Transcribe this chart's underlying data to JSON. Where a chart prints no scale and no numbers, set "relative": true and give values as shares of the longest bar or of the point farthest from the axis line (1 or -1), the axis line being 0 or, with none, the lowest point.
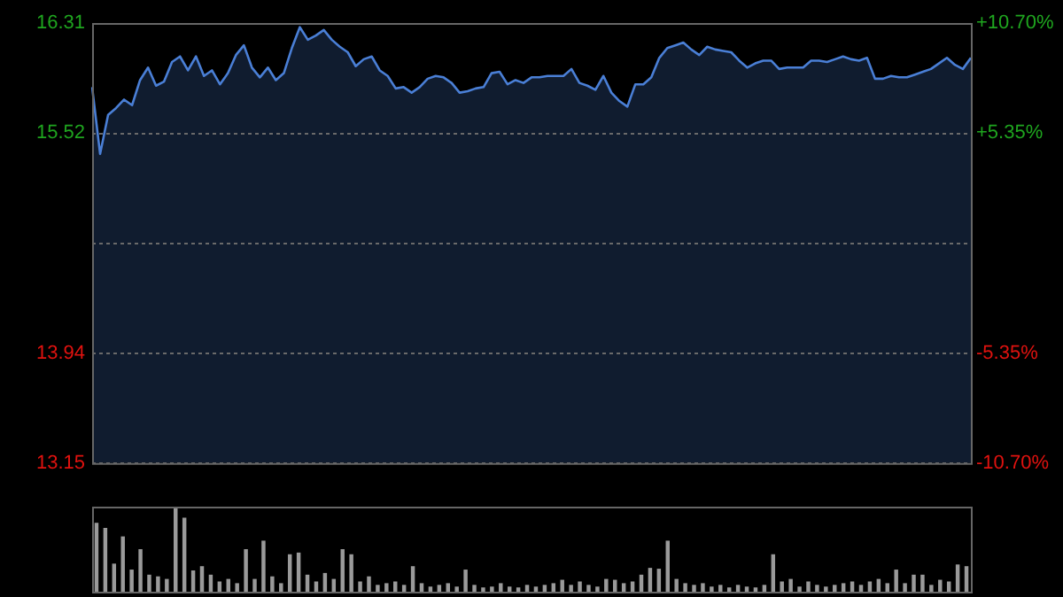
{
  "chart_data": [
    {
      "type": "area",
      "categories": [
        null,
        null,
        null,
        null,
        null,
        null,
        null,
        null,
        null,
        null,
        null,
        null,
        null,
        null,
        null,
        null,
        null,
        null,
        null,
        null,
        null,
        null,
        null,
        null,
        null,
        null,
        null,
        null,
        null,
        null,
        null,
        null,
        null,
        null,
        null,
        null,
        null,
        null,
        null,
        null,
        null,
        null,
        null,
        null,
        null,
        null,
        null,
        null,
        null,
        null,
        null,
        null,
        null,
        null,
        null,
        null,
        null,
        null,
        null,
        null,
        null,
        null,
        null,
        null,
        null,
        null,
        null,
        null,
        null,
        null,
        null,
        null,
        null,
        null,
        null,
        null,
        null,
        null,
        null,
        null,
        null,
        null,
        null,
        null,
        null,
        null,
        null,
        null,
        null,
        null,
        null,
        null,
        null,
        null,
        null,
        null,
        null,
        null,
        null,
        null,
        null,
        null,
        null,
        null,
        null,
        null,
        null,
        null,
        null,
        null,
        null
      ],
      "series": [
        {
          "color": "#4a7fd6",
          "values": [
            15.85,
            15.37,
            15.65,
            15.7,
            15.76,
            15.72,
            15.9,
            15.99,
            15.86,
            15.89,
            16.03,
            16.07,
            15.97,
            16.07,
            15.93,
            15.97,
            15.87,
            15.95,
            16.08,
            16.15,
            15.99,
            15.92,
            15.99,
            15.9,
            15.95,
            16.13,
            16.28,
            16.19,
            16.22,
            16.26,
            16.19,
            16.14,
            16.1,
            16.0,
            16.05,
            16.07,
            15.97,
            15.93,
            15.84,
            15.85,
            15.81,
            15.85,
            15.91,
            15.93,
            15.92,
            15.88,
            15.81,
            15.82,
            15.84,
            15.85,
            15.95,
            15.96,
            15.87,
            15.9,
            15.88,
            15.92,
            15.92,
            15.93,
            15.93,
            15.93,
            15.98,
            15.88,
            15.86,
            15.83,
            15.93,
            15.81,
            15.75,
            15.71,
            15.87,
            15.87,
            15.92,
            16.06,
            16.13,
            16.15,
            16.17,
            16.12,
            16.08,
            16.14,
            16.12,
            16.11,
            16.1,
            16.04,
            15.99,
            16.02,
            16.04,
            16.04,
            15.98,
            15.99,
            15.99,
            15.99,
            16.04,
            16.04,
            16.03,
            16.05,
            16.07,
            16.05,
            16.04,
            16.06,
            15.91,
            15.91,
            15.93,
            15.92,
            15.92,
            15.94,
            15.96,
            15.98,
            16.02,
            16.06,
            16.01,
            15.98,
            16.06
          ]
        }
      ],
      "ylim": [
        13.15,
        16.31
      ],
      "yticks": [
        16.31,
        15.52,
        {
          "value": 14.73,
          "label": null
        },
        13.94,
        13.15
      ],
      "y2lim": [
        -10.7,
        10.7
      ],
      "y2ticks": [
        {
          "value": 10.7,
          "label": "+10.70%"
        },
        {
          "value": 5.35,
          "label": "+5.35%"
        },
        {
          "value": -5.35,
          "label": "-5.35%"
        },
        {
          "value": -10.7,
          "label": "-10.70%"
        }
      ],
      "grid": "y"
    },
    {
      "type": "bar",
      "relative": true,
      "color": "#9a9a9a",
      "categories": [
        null,
        null,
        null,
        null,
        null,
        null,
        null,
        null,
        null,
        null,
        null,
        null,
        null,
        null,
        null,
        null,
        null,
        null,
        null,
        null,
        null,
        null,
        null,
        null,
        null,
        null,
        null,
        null,
        null,
        null,
        null,
        null,
        null,
        null,
        null,
        null,
        null,
        null,
        null,
        null,
        null,
        null,
        null,
        null,
        null,
        null,
        null,
        null,
        null,
        null,
        null,
        null,
        null,
        null,
        null,
        null,
        null,
        null,
        null,
        null,
        null,
        null,
        null,
        null,
        null,
        null,
        null,
        null,
        null,
        null,
        null,
        null,
        null,
        null,
        null,
        null,
        null,
        null,
        null,
        null,
        null,
        null,
        null,
        null,
        null,
        null,
        null,
        null,
        null,
        null,
        null,
        null,
        null,
        null,
        null,
        null,
        null,
        null,
        null,
        null
      ],
      "values": [
        0.81,
        0.75,
        0.33,
        0.65,
        0.26,
        0.5,
        0.2,
        0.18,
        0.15,
        1,
        0.87,
        0.25,
        0.3,
        0.2,
        0.12,
        0.15,
        0.1,
        0.5,
        0.15,
        0.6,
        0.18,
        0.1,
        0.44,
        0.46,
        0.2,
        0.12,
        0.22,
        0.15,
        0.5,
        0.44,
        0.12,
        0.18,
        0.08,
        0.1,
        0.12,
        0.08,
        0.3,
        0.1,
        0.06,
        0.08,
        0.1,
        0.06,
        0.26,
        0.08,
        0.05,
        0.06,
        0.1,
        0.06,
        0.05,
        0.08,
        0.06,
        0.08,
        0.1,
        0.14,
        0.08,
        0.12,
        0.08,
        0.06,
        0.15,
        0.14,
        0.1,
        0.12,
        0.2,
        0.28,
        0.27,
        0.6,
        0.15,
        0.1,
        0.08,
        0.1,
        0.06,
        0.08,
        0.05,
        0.08,
        0.06,
        0.05,
        0.08,
        0.44,
        0.12,
        0.15,
        0.06,
        0.12,
        0.08,
        0.06,
        0.08,
        0.1,
        0.12,
        0.08,
        0.12,
        0.15,
        0.1,
        0.26,
        0.1,
        0.2,
        0.2,
        0.08,
        0.14,
        0.12,
        0.32,
        0.3
      ]
    }
  ]
}
